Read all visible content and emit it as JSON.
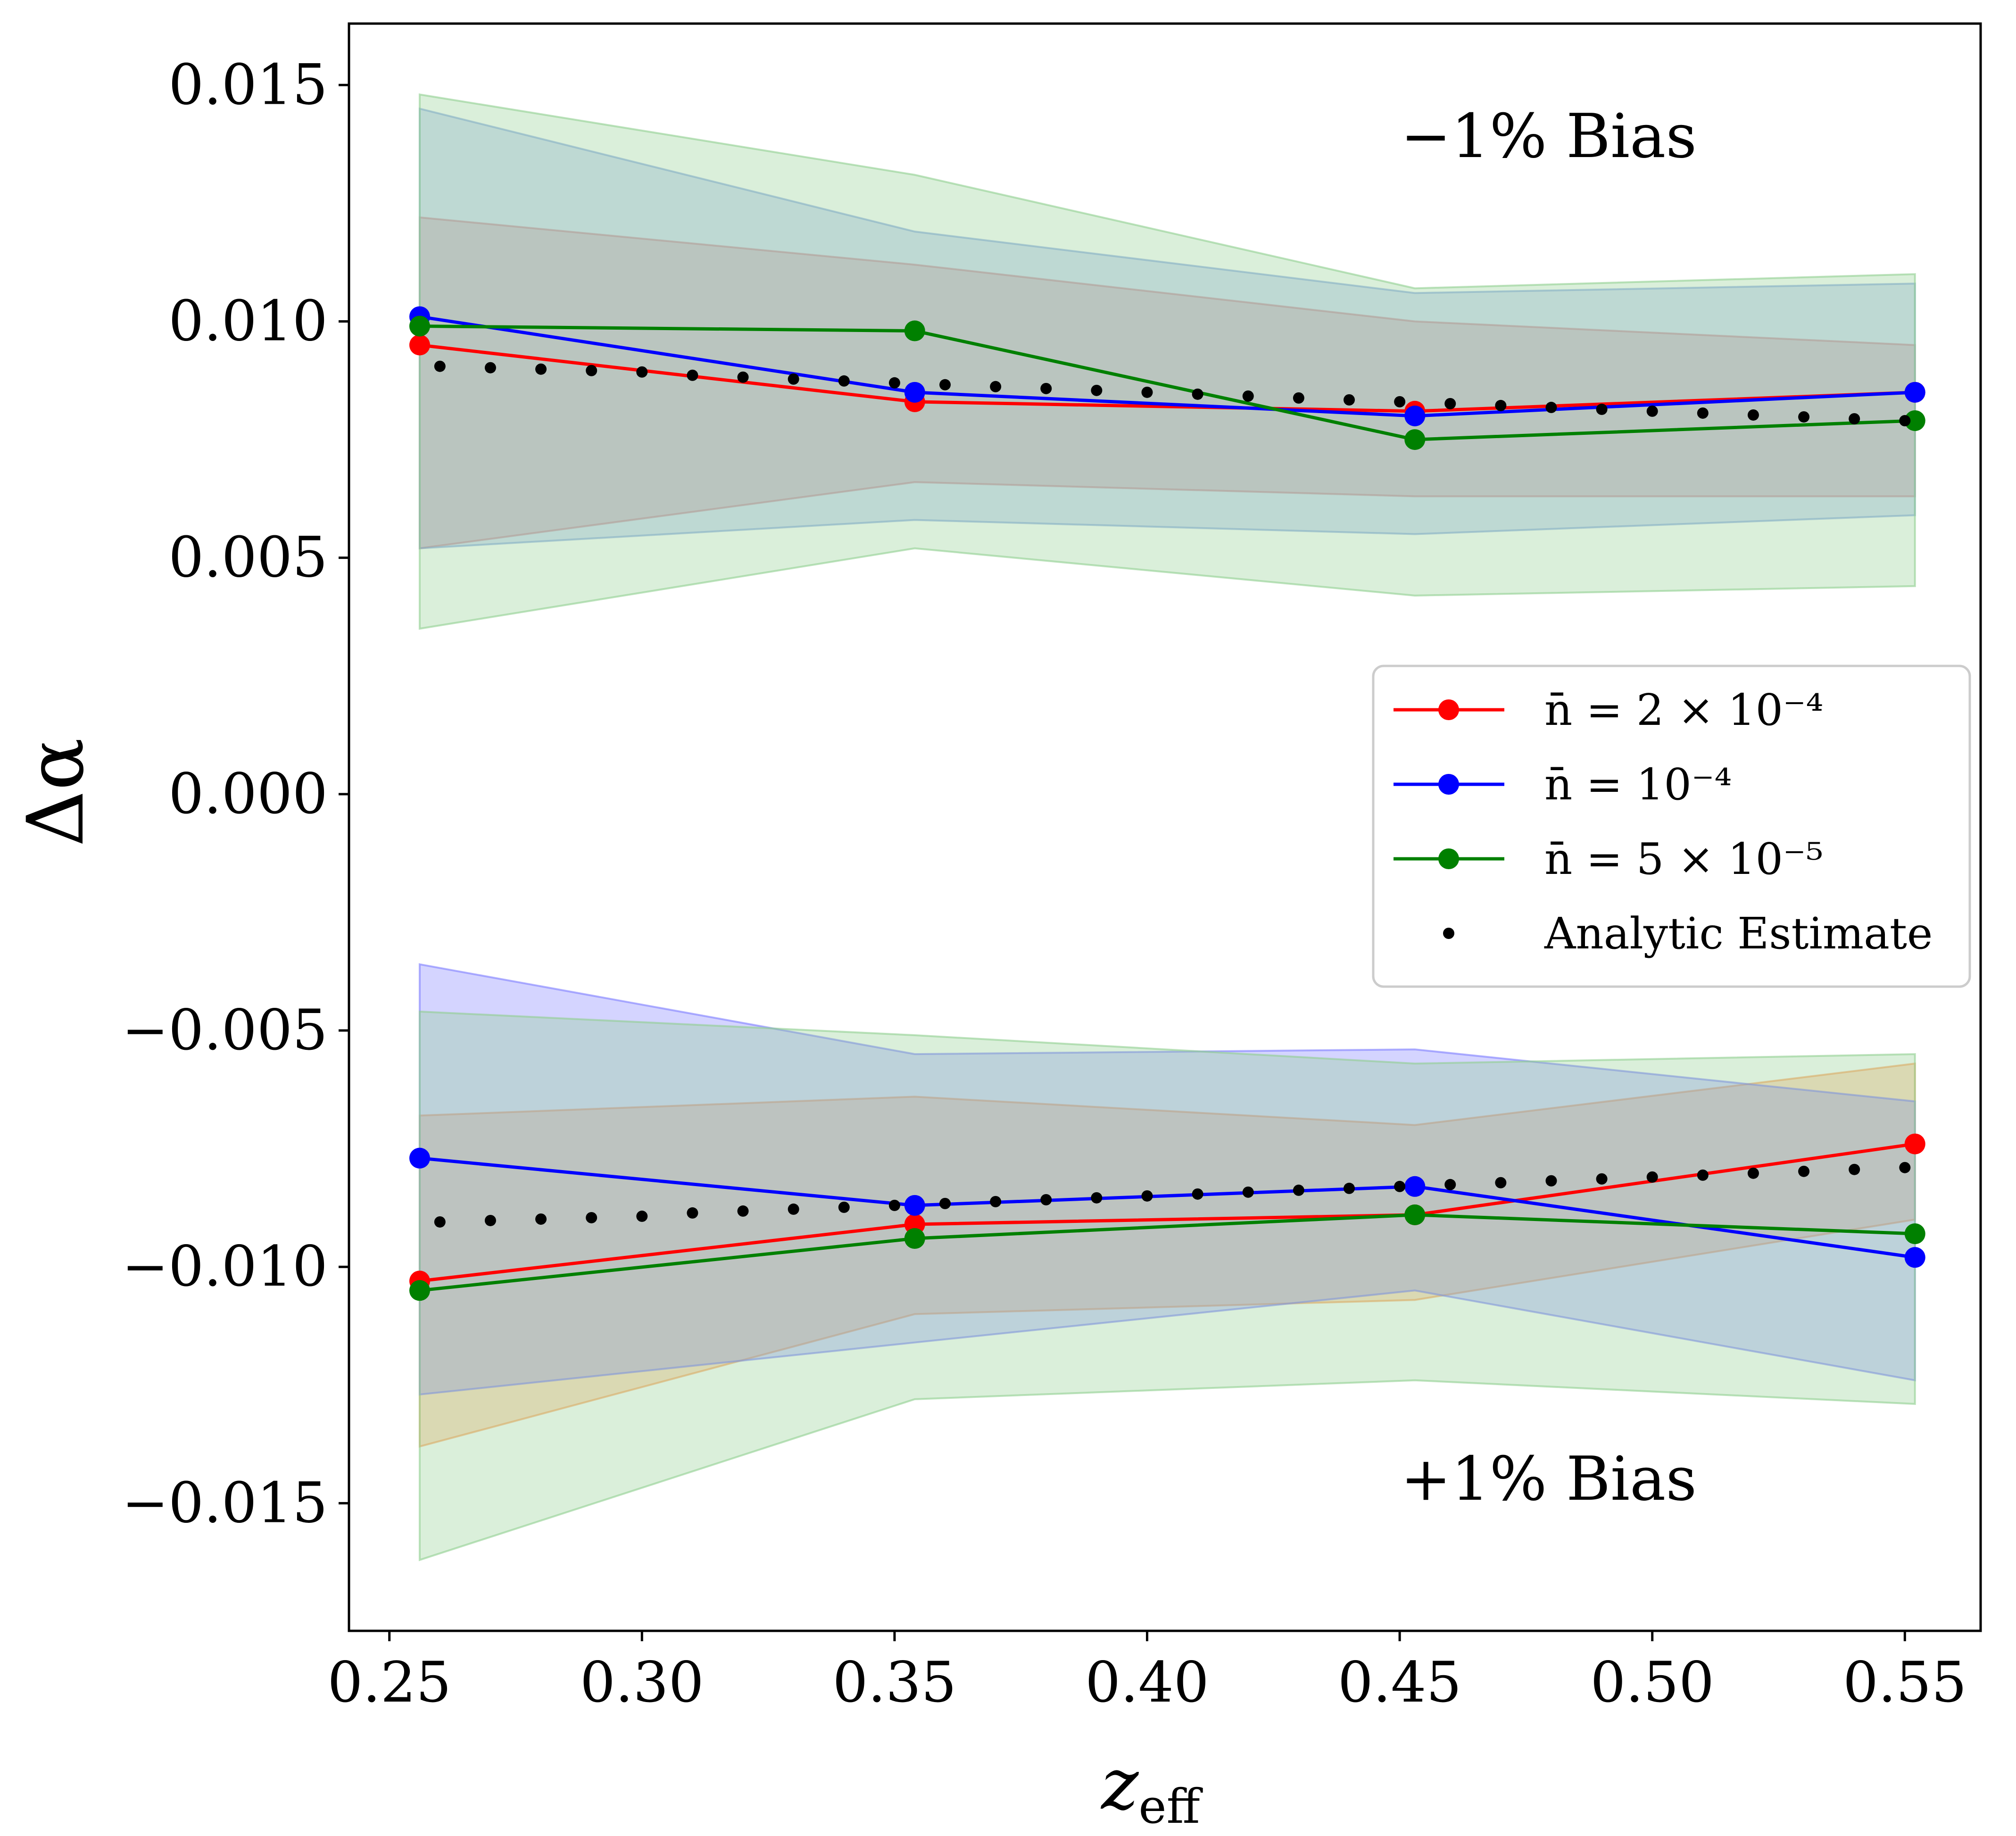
{
  "chart_data": {
    "type": "line",
    "title": "",
    "xlabel": "z",
    "xlabel_sub": "eff",
    "ylabel": "Δα",
    "xlim": [
      0.242,
      0.565
    ],
    "ylim": [
      -0.0177,
      0.0163
    ],
    "x_ticks": [
      0.25,
      0.3,
      0.35,
      0.4,
      0.45,
      0.5,
      0.55
    ],
    "x_tick_labels": [
      "0.25",
      "0.30",
      "0.35",
      "0.40",
      "0.45",
      "0.50",
      "0.55"
    ],
    "y_ticks": [
      0.015,
      0.01,
      0.005,
      0.0,
      -0.005,
      -0.01,
      -0.015
    ],
    "y_tick_labels": [
      "0.015",
      "0.010",
      "0.005",
      "0.000",
      "−0.005",
      "−0.010",
      "−0.015"
    ],
    "annotations": [
      "−1% Bias",
      "+1% Bias"
    ],
    "x": [
      0.256,
      0.354,
      0.453,
      0.552
    ],
    "colors": {
      "red": "#ff0000",
      "blue": "#0000ff",
      "green": "#008000",
      "black": "#000000"
    },
    "series": [
      {
        "name": "n̄ = 2 × 10⁻⁴",
        "color": "#ff0000",
        "group": "minus1",
        "band_color": "#e87a7a",
        "values": [
          0.0095,
          0.0083,
          0.0081,
          0.0085
        ],
        "lower": [
          0.0052,
          0.0066,
          0.0063,
          0.0063
        ],
        "upper": [
          0.0122,
          0.0112,
          0.01,
          0.0095
        ]
      },
      {
        "name": "n̄ = 10⁻⁴",
        "color": "#0000ff",
        "group": "minus1",
        "band_color": "#7f9ee0",
        "values": [
          0.0101,
          0.0085,
          0.008,
          0.0085
        ],
        "lower": [
          0.0052,
          0.0058,
          0.0055,
          0.0059
        ],
        "upper": [
          0.0145,
          0.0119,
          0.0106,
          0.0108
        ]
      },
      {
        "name": "n̄ = 5 × 10⁻⁵",
        "color": "#008000",
        "group": "minus1",
        "band_color": "#8fcf8f",
        "values": [
          0.0099,
          0.0098,
          0.0075,
          0.0079
        ],
        "lower": [
          0.0035,
          0.0052,
          0.0042,
          0.0044
        ],
        "upper": [
          0.0148,
          0.0131,
          0.0107,
          0.011
        ]
      },
      {
        "name": "n̄ = 2 × 10⁻⁴",
        "color": "#ff0000",
        "group": "plus1",
        "band_color": "#ff9a50",
        "values": [
          -0.0103,
          -0.0091,
          -0.0089,
          -0.0074
        ],
        "lower": [
          -0.0138,
          -0.011,
          -0.0107,
          -0.009
        ],
        "upper": [
          -0.0068,
          -0.0064,
          -0.007,
          -0.0057
        ]
      },
      {
        "name": "n̄ = 10⁻⁴",
        "color": "#0000ff",
        "group": "plus1",
        "band_color": "#7b7bff",
        "values": [
          -0.0077,
          -0.0087,
          -0.0083,
          -0.0098
        ],
        "lower": [
          -0.0127,
          -0.0116,
          -0.0105,
          -0.0124
        ],
        "upper": [
          -0.0036,
          -0.0055,
          -0.0054,
          -0.0065
        ]
      },
      {
        "name": "n̄ = 5 × 10⁻⁵",
        "color": "#008000",
        "group": "plus1",
        "band_color": "#8fcf8f",
        "values": [
          -0.0105,
          -0.0094,
          -0.0089,
          -0.0093
        ],
        "lower": [
          -0.0162,
          -0.0128,
          -0.0124,
          -0.0129
        ],
        "upper": [
          -0.0046,
          -0.0051,
          -0.0057,
          -0.0055
        ]
      }
    ],
    "analytic_estimate": {
      "name": "Analytic Estimate",
      "color": "#000000",
      "x": [
        0.26,
        0.27,
        0.28,
        0.29,
        0.3,
        0.31,
        0.32,
        0.33,
        0.34,
        0.35,
        0.36,
        0.37,
        0.38,
        0.39,
        0.4,
        0.41,
        0.42,
        0.43,
        0.44,
        0.45,
        0.46,
        0.47,
        0.48,
        0.49,
        0.5,
        0.51,
        0.52,
        0.53,
        0.54,
        0.55
      ],
      "minus1": [
        0.00905,
        0.00902,
        0.00899,
        0.00896,
        0.00893,
        0.00886,
        0.00882,
        0.00878,
        0.00874,
        0.0087,
        0.00866,
        0.00862,
        0.00858,
        0.00854,
        0.0085,
        0.00846,
        0.00842,
        0.00838,
        0.00834,
        0.0083,
        0.00826,
        0.00822,
        0.00818,
        0.00814,
        0.0081,
        0.00806,
        0.00802,
        0.00798,
        0.00794,
        0.0079
      ],
      "plus1": [
        -0.00905,
        -0.00902,
        -0.00899,
        -0.00896,
        -0.00893,
        -0.00886,
        -0.00882,
        -0.00878,
        -0.00874,
        -0.0087,
        -0.00866,
        -0.00862,
        -0.00858,
        -0.00854,
        -0.0085,
        -0.00846,
        -0.00842,
        -0.00838,
        -0.00834,
        -0.0083,
        -0.00826,
        -0.00822,
        -0.00818,
        -0.00814,
        -0.0081,
        -0.00806,
        -0.00802,
        -0.00798,
        -0.00794,
        -0.0079
      ]
    },
    "legend": {
      "position": "center-right",
      "entries": [
        "n̄ = 2 × 10⁻⁴",
        "n̄ = 10⁻⁴",
        "n̄ = 5 × 10⁻⁵",
        "Analytic Estimate"
      ]
    }
  }
}
